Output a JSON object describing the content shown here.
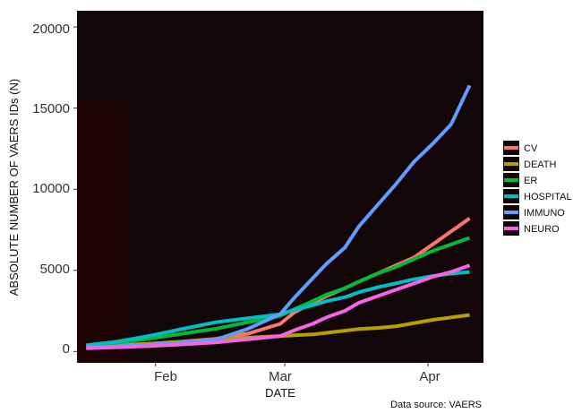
{
  "chart_data": {
    "type": "line",
    "title": "",
    "xlabel": "DATE",
    "ylabel": "ABSOLUTE NUMBER OF VAERS IDs (N)",
    "caption": "Data source: VAERS",
    "x_range": [
      "2021-01-15",
      "2021-04-13"
    ],
    "ylim": [
      -700,
      21000
    ],
    "x_ticks": [
      {
        "date": "2021-02-01",
        "label": "Feb"
      },
      {
        "date": "2021-03-01",
        "label": "Mar"
      },
      {
        "date": "2021-04-01",
        "label": "Apr"
      }
    ],
    "y_ticks": [
      0,
      5000,
      10000,
      15000,
      20000
    ],
    "y_tick_labels": [
      "0",
      "5000",
      "10000",
      "15000",
      "20000"
    ],
    "background": "#130608",
    "grid": false,
    "legend_position": "right",
    "x": [
      "2021-01-17",
      "2021-01-24",
      "2021-01-31",
      "2021-02-07",
      "2021-02-14",
      "2021-02-21",
      "2021-02-28",
      "2021-03-03",
      "2021-03-07",
      "2021-03-10",
      "2021-03-14",
      "2021-03-17",
      "2021-03-21",
      "2021-03-25",
      "2021-03-29",
      "2021-04-02",
      "2021-04-06",
      "2021-04-10"
    ],
    "series": [
      {
        "name": "CV",
        "color": "#F8766D",
        "values": [
          300,
          380,
          480,
          620,
          780,
          1100,
          1700,
          2400,
          3000,
          3400,
          3900,
          4300,
          4800,
          5300,
          5800,
          6600,
          7400,
          8200
        ]
      },
      {
        "name": "DEATH",
        "color": "#B79F00",
        "values": [
          300,
          380,
          480,
          600,
          720,
          850,
          950,
          1000,
          1050,
          1150,
          1280,
          1380,
          1450,
          1550,
          1750,
          1950,
          2100,
          2250
        ]
      },
      {
        "name": "ER",
        "color": "#00BA38",
        "values": [
          350,
          550,
          800,
          1100,
          1400,
          1800,
          2200,
          2600,
          3100,
          3500,
          3900,
          4300,
          4800,
          5200,
          5700,
          6200,
          6600,
          7000
        ]
      },
      {
        "name": "HOSPITAL",
        "color": "#00BFC4",
        "values": [
          380,
          620,
          980,
          1400,
          1800,
          2050,
          2300,
          2550,
          2850,
          3100,
          3350,
          3650,
          3950,
          4200,
          4450,
          4650,
          4800,
          4900
        ]
      },
      {
        "name": "IMMUNO",
        "color": "#619CFF",
        "values": [
          250,
          320,
          420,
          560,
          720,
          1400,
          2300,
          3300,
          4500,
          5400,
          6400,
          7700,
          9000,
          10300,
          11700,
          12800,
          14000,
          16400
        ]
      },
      {
        "name": "NEURO",
        "color": "#F564E3",
        "values": [
          200,
          260,
          340,
          440,
          560,
          750,
          950,
          1300,
          1700,
          2100,
          2500,
          3000,
          3400,
          3800,
          4200,
          4600,
          4900,
          5300
        ]
      }
    ]
  }
}
